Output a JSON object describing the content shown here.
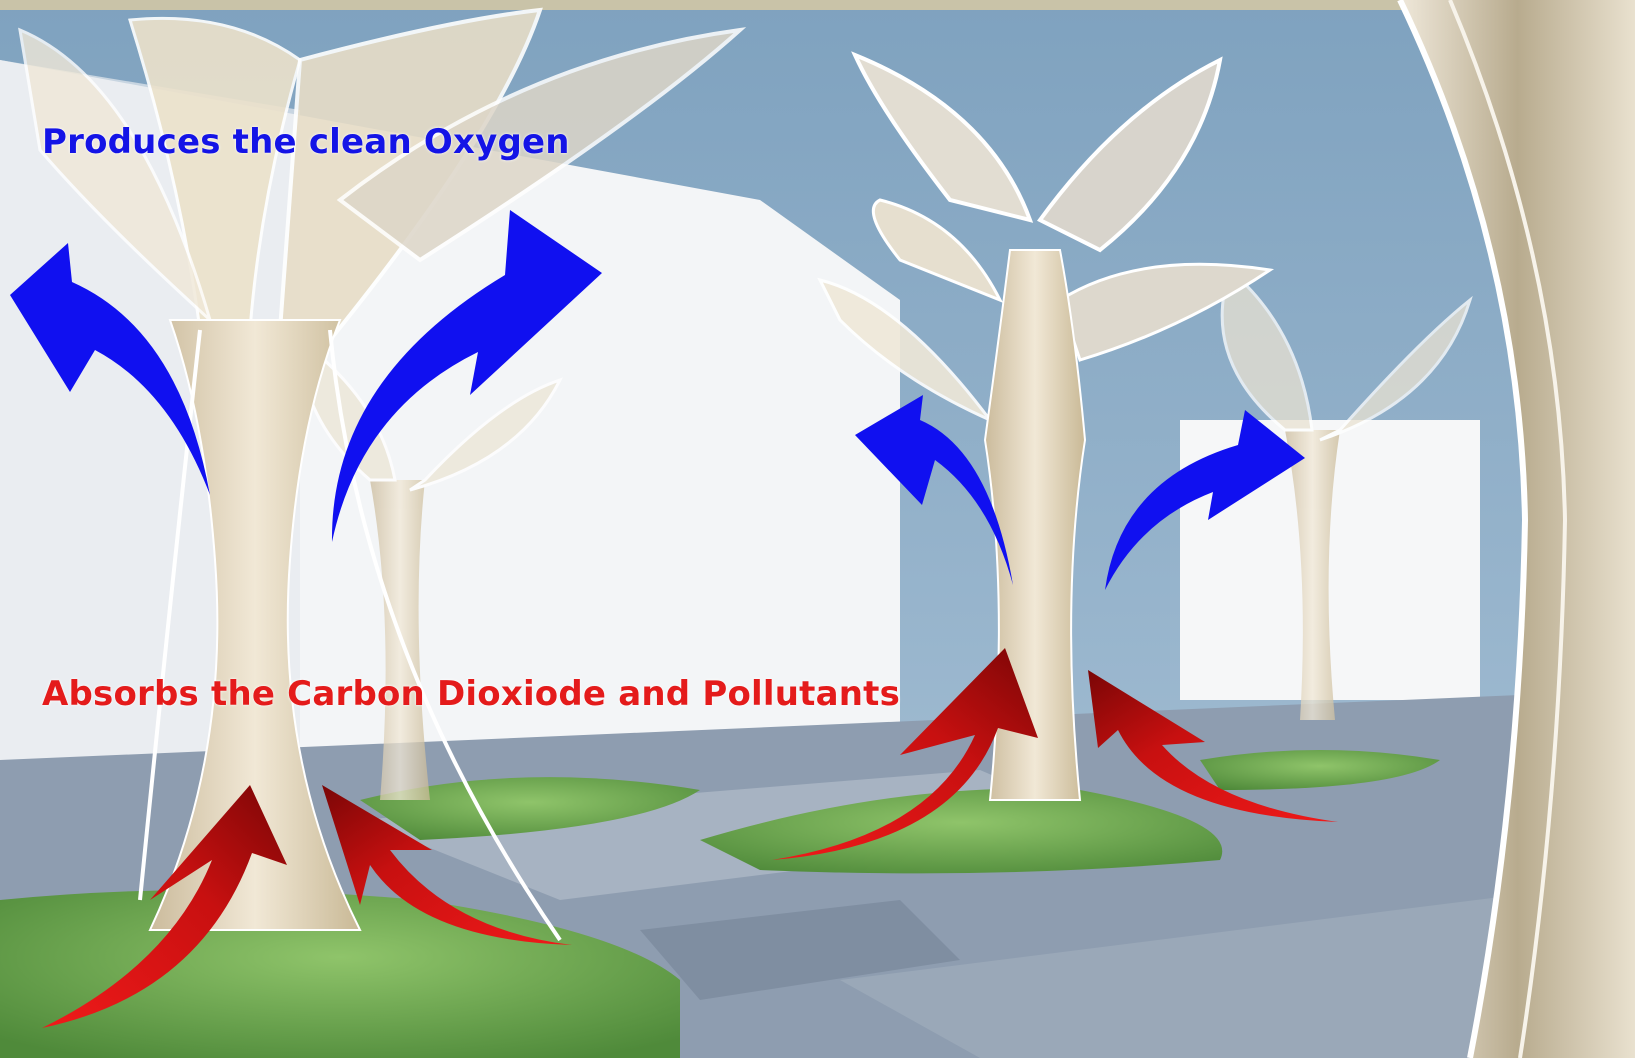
{
  "captions": {
    "oxygen": "Produces the clean Oxygen",
    "carbon": "Absorbs the Carbon Dioxiode and Pollutants"
  },
  "colors": {
    "oxygen_arrow": "#1010f0",
    "oxygen_text": "#1414e6",
    "pollutant_arrow": "#c41414",
    "pollutant_text": "#e41b1b",
    "sky": "#8fb0c9",
    "wall": "#f4f6f8",
    "path": "#8d9cae",
    "grass": "#6aa24a",
    "tree_structure": "#e8dcc4"
  },
  "icons": {
    "oxygen_arrows": [
      "curved-arrow-up-left",
      "curved-arrow-up-right",
      "curved-arrow-up-left",
      "curved-arrow-up-right"
    ],
    "pollutant_arrows": [
      "curved-arrow-up-right",
      "curved-arrow-up-left",
      "curved-arrow-up-right",
      "curved-arrow-up-left"
    ]
  }
}
